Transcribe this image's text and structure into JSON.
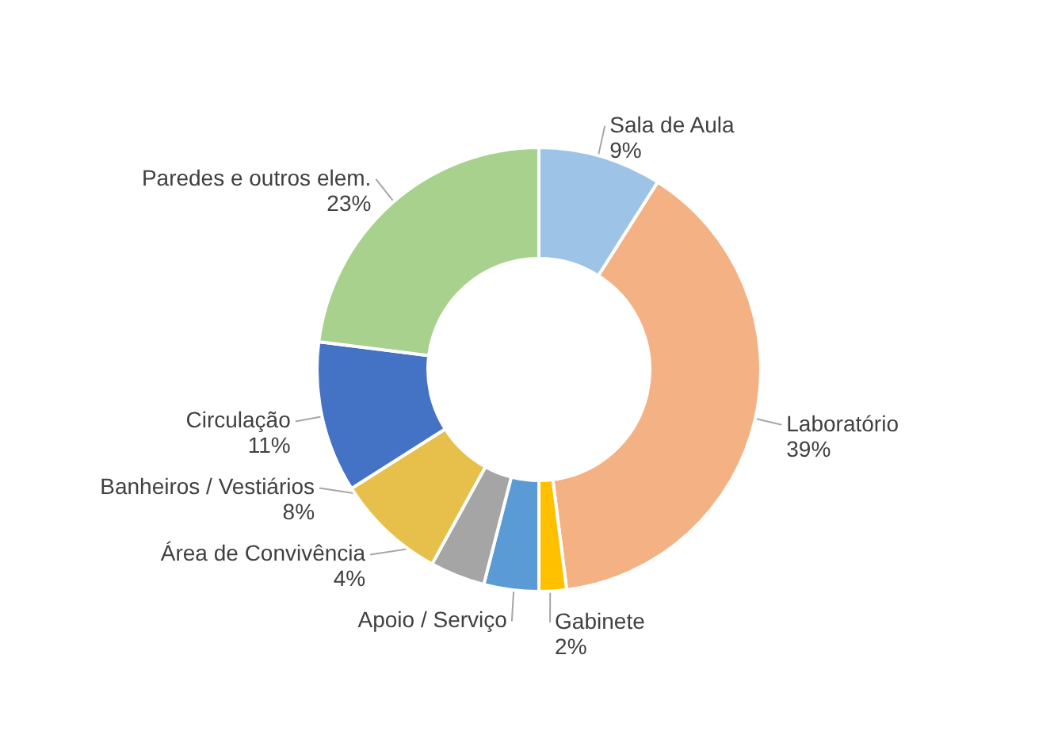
{
  "chart_data": {
    "type": "donut",
    "categories": [
      "Sala de Aula",
      "Laboratório",
      "Gabinete",
      "Apoio / Serviço",
      "Área de Convivência",
      "Banheiros / Vestiários",
      "Circulação",
      "Paredes e outros elem."
    ],
    "values": [
      9,
      39,
      2,
      4,
      4,
      8,
      11,
      23
    ],
    "value_labels": [
      "9%",
      "39%",
      "2%",
      null,
      "4%",
      "8%",
      "11%",
      "23%"
    ],
    "colors": [
      "#9dc3e6",
      "#f4b183",
      "#ffc000",
      "#5b9bd5",
      "#a5a5a5",
      "#e6c04a",
      "#4472c4",
      "#a9d18e"
    ]
  }
}
